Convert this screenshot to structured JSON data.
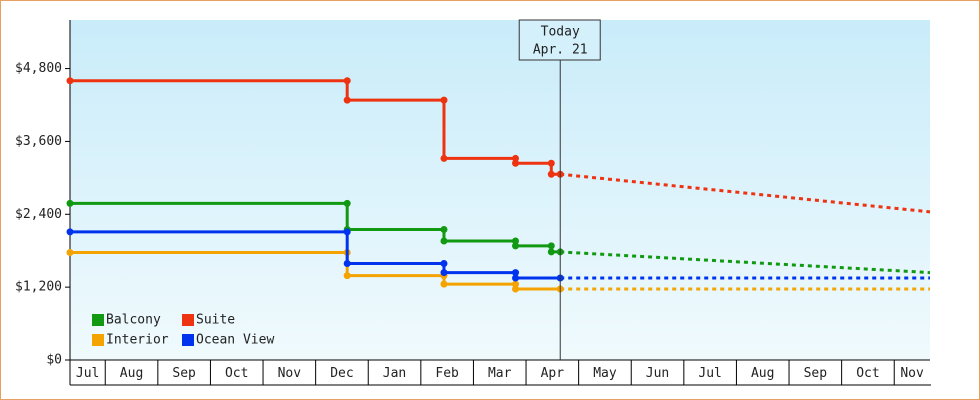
{
  "chart_data": {
    "type": "line",
    "interpolation": "explicit-steps",
    "xlim": [
      0.33,
      16.68
    ],
    "xticks": [
      {
        "value": 0.5,
        "label": "Jul"
      },
      {
        "value": 1.5,
        "label": "Aug"
      },
      {
        "value": 2.5,
        "label": "Sep"
      },
      {
        "value": 3.5,
        "label": "Oct"
      },
      {
        "value": 4.5,
        "label": "Nov"
      },
      {
        "value": 5.5,
        "label": "Dec"
      },
      {
        "value": 6.5,
        "label": "Jan"
      },
      {
        "value": 7.5,
        "label": "Feb"
      },
      {
        "value": 8.5,
        "label": "Mar"
      },
      {
        "value": 9.5,
        "label": "Apr"
      },
      {
        "value": 10.5,
        "label": "May"
      },
      {
        "value": 11.5,
        "label": "Jun"
      },
      {
        "value": 12.5,
        "label": "Jul"
      },
      {
        "value": 13.5,
        "label": "Aug"
      },
      {
        "value": 14.5,
        "label": "Sep"
      },
      {
        "value": 15.5,
        "label": "Oct"
      },
      {
        "value": 16.5,
        "label": "Nov"
      }
    ],
    "ylim": [
      0,
      5600
    ],
    "yticks": [
      {
        "value": 0,
        "label": "$0"
      },
      {
        "value": 1200,
        "label": "$1,200"
      },
      {
        "value": 2400,
        "label": "$2,400"
      },
      {
        "value": 3600,
        "label": "$3,600"
      },
      {
        "value": 4800,
        "label": "$4,800"
      }
    ],
    "legend": "lower left",
    "annotation": {
      "x": 9.65,
      "lines": [
        "Today",
        "Apr. 21"
      ]
    },
    "series": [
      {
        "name": "Balcony",
        "color": "#119911",
        "x": [
          0.33,
          5.6,
          5.6,
          7.44,
          7.44,
          8.8,
          8.8,
          9.48,
          9.48,
          9.65
        ],
        "values": [
          2580,
          2580,
          2150,
          2150,
          1960,
          1960,
          1880,
          1880,
          1780,
          1780
        ],
        "forecast": {
          "x": [
            9.65,
            16.68
          ],
          "values": [
            1780,
            1440
          ]
        }
      },
      {
        "name": "Suite",
        "color": "#ee3311",
        "x": [
          0.33,
          5.6,
          5.6,
          7.44,
          7.44,
          8.8,
          8.8,
          9.48,
          9.48,
          9.65
        ],
        "values": [
          4600,
          4600,
          4280,
          4280,
          3320,
          3320,
          3240,
          3240,
          3060,
          3060
        ],
        "forecast": {
          "x": [
            9.65,
            16.68
          ],
          "values": [
            3060,
            2440
          ]
        }
      },
      {
        "name": "Interior",
        "color": "#f5a300",
        "x": [
          0.33,
          5.6,
          5.6,
          7.44,
          7.44,
          8.8,
          8.8,
          9.65
        ],
        "values": [
          1770,
          1770,
          1390,
          1390,
          1250,
          1250,
          1170,
          1170
        ],
        "forecast": {
          "x": [
            9.65,
            16.68
          ],
          "values": [
            1170,
            1170
          ]
        }
      },
      {
        "name": "Ocean View",
        "color": "#0033ee",
        "x": [
          0.33,
          5.6,
          5.6,
          7.44,
          7.44,
          8.8,
          8.8,
          9.65
        ],
        "values": [
          2110,
          2110,
          1590,
          1590,
          1440,
          1440,
          1350,
          1350
        ],
        "forecast": {
          "x": [
            9.65,
            16.68
          ],
          "values": [
            1350,
            1350
          ]
        }
      }
    ]
  }
}
